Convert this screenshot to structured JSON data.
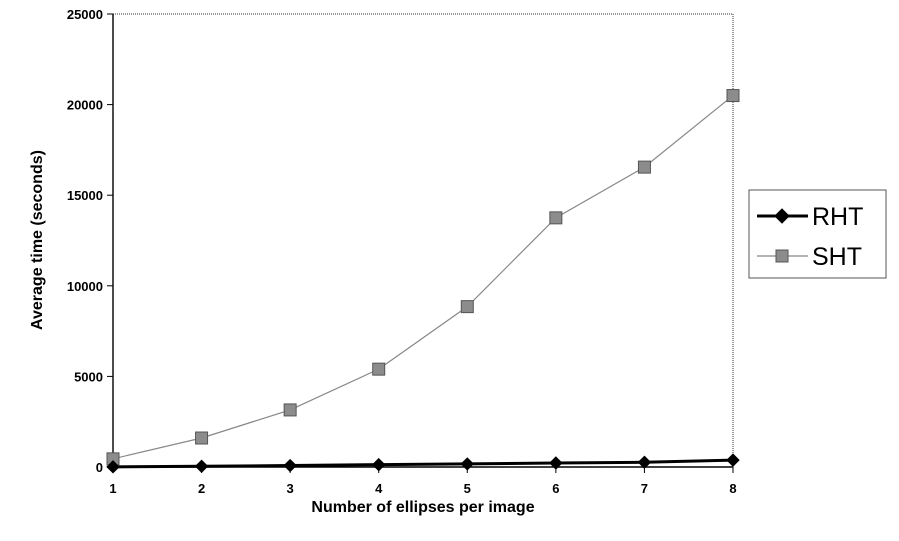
{
  "chart_data": {
    "type": "line",
    "x": [
      1,
      2,
      3,
      4,
      5,
      6,
      7,
      8
    ],
    "categories": [
      "1",
      "2",
      "3",
      "4",
      "5",
      "6",
      "7",
      "8"
    ],
    "series": [
      {
        "name": "RHT",
        "values": [
          10,
          40,
          80,
          130,
          170,
          220,
          260,
          380
        ],
        "color": "#000000",
        "marker": "diamond"
      },
      {
        "name": "SHT",
        "values": [
          450,
          1600,
          3150,
          5400,
          8850,
          13750,
          16550,
          20500
        ],
        "color": "#888888",
        "marker": "square"
      }
    ],
    "yticks": [
      "0",
      "5000",
      "10000",
      "15000",
      "20000",
      "25000"
    ],
    "ylim": [
      0,
      25000
    ],
    "xlim": [
      1,
      8
    ],
    "xlabel": "Number of ellipses per image",
    "ylabel": "Average time (seconds)",
    "grid": false,
    "legend_position": "right"
  }
}
